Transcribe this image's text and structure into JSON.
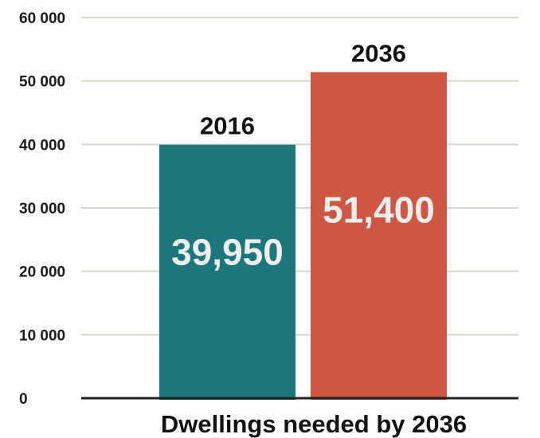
{
  "chart_data": {
    "type": "bar",
    "categories": [
      "2016",
      "2036"
    ],
    "values": [
      39950,
      51400
    ],
    "value_labels": [
      "39,950",
      "51,400"
    ],
    "colors": [
      "#1b777b",
      "#cc5844"
    ],
    "title": "",
    "xlabel": "Dwellings needed by 2036",
    "ylabel": "",
    "ylim": [
      0,
      60000
    ],
    "yticks": [
      0,
      10000,
      20000,
      30000,
      40000,
      50000,
      60000
    ],
    "ytick_labels": [
      "0",
      "10 000",
      "20 000",
      "30 000",
      "40 000",
      "50 000",
      "60 000"
    ],
    "grid": true,
    "grid_color": "#d6d6ca",
    "axis_color": "#222222"
  }
}
